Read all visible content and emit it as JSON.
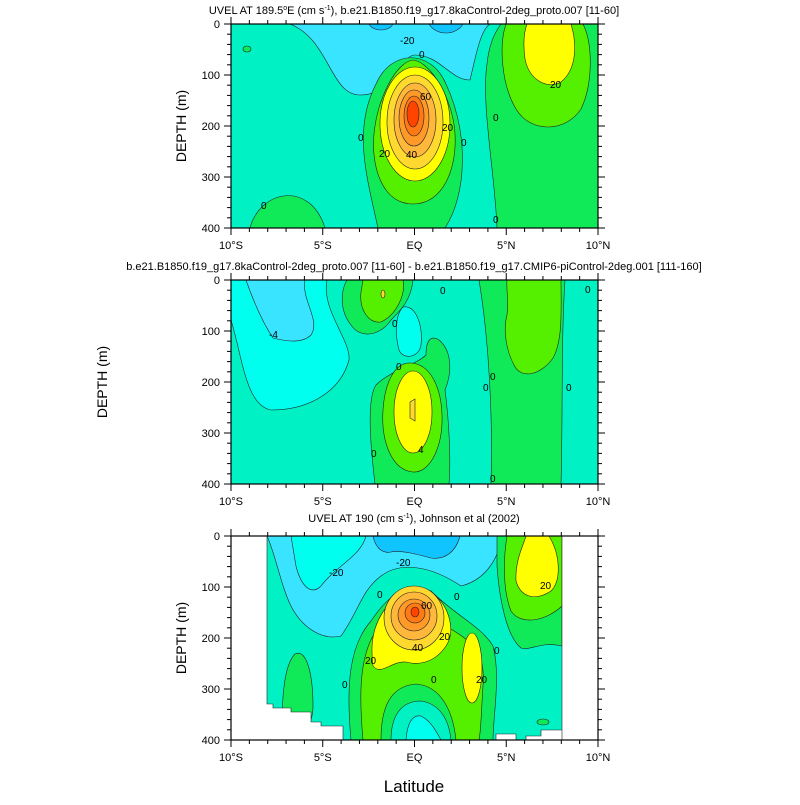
{
  "colors": {
    "deep_blue": "#10c4ff",
    "cyan": "#38e4ff",
    "aqua": "#00ffee",
    "teal": "#00f2c4",
    "green": "#10ea58",
    "lime": "#55f000",
    "yellow": "#ffff00",
    "gold": "#ffd830",
    "orange1": "#ffb83c",
    "orange2": "#ff9a28",
    "orange3": "#ff7a14",
    "red": "#ff4400",
    "missing": "#ffffff"
  },
  "xlabel": "Latitude",
  "chart_data": [
    {
      "type": "heatmap",
      "subtype": "filled-contour",
      "title": "UVEL AT 189.5°E (cm s-1), b.e21.B1850.f19_g17.8kaControl-2deg_proto.007 [11-60]",
      "title_parts": [
        "UVEL AT 189.5",
        "o",
        "E (cm s",
        "-1",
        "), b.e21.B1850.f19_g17.8kaControl-2deg_proto.007 [11-60]"
      ],
      "ylabel": "DEPTH (m)",
      "xlabel": "Latitude",
      "xticks": [
        "10°S",
        "5°S",
        "EQ",
        "5°N",
        "10°N"
      ],
      "yticks": [
        "0",
        "100",
        "200",
        "300",
        "400"
      ],
      "xlim": [
        -10,
        10
      ],
      "ylim": [
        400,
        0
      ],
      "contour_labels": [
        "-20",
        "0",
        "60",
        "20",
        "40",
        "20",
        "0",
        "0",
        "20",
        "0",
        "0",
        "0"
      ],
      "max_value_approx": 80,
      "max_location": {
        "lat": 0,
        "depth": 180
      }
    },
    {
      "type": "heatmap",
      "subtype": "filled-contour",
      "title": "b.e21.B1850.f19_g17.8kaControl-2deg_proto.007 [11-60] - b.e21.B1850.f19_g17.CMIP6-piControl-2deg.001 [111-160]",
      "ylabel": "DEPTH (m)",
      "xticks": [
        "10°S",
        "5°S",
        "EQ",
        "5°N",
        "10°N"
      ],
      "yticks": [
        "0",
        "100",
        "200",
        "300",
        "400"
      ],
      "xlim": [
        -10,
        10
      ],
      "ylim": [
        400,
        0
      ],
      "contour_labels": [
        "-4",
        "0",
        "0",
        "0",
        "0",
        "0",
        "4",
        "0",
        "0",
        "0",
        "0"
      ]
    },
    {
      "type": "heatmap",
      "subtype": "filled-contour",
      "title": "UVEL AT 190 (cm s-1), Johnson et al (2002)",
      "title_parts": [
        "UVEL AT 190 (cm s",
        "-1",
        "), Johnson et al (2002)"
      ],
      "ylabel": "DEPTH (m)",
      "xticks": [
        "10°S",
        "5°S",
        "EQ",
        "5°N",
        "10°N"
      ],
      "yticks": [
        "0",
        "100",
        "200",
        "300",
        "400"
      ],
      "xlim": [
        -10,
        10
      ],
      "ylim": [
        400,
        0
      ],
      "contour_labels": [
        "-20",
        "-20",
        "0",
        "60",
        "20",
        "40",
        "20",
        "0",
        "0",
        "20",
        "0",
        "20",
        "0"
      ],
      "max_value_approx": 90,
      "max_location": {
        "lat": 0,
        "depth": 150
      }
    }
  ]
}
